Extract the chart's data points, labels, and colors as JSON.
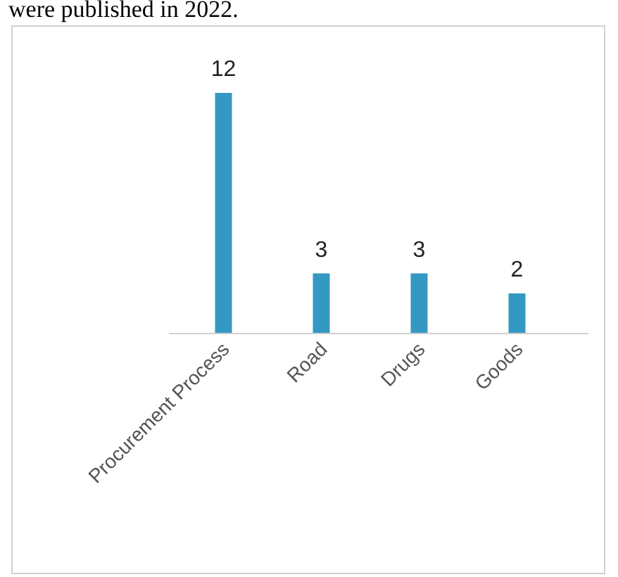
{
  "chart_data": {
    "type": "bar",
    "annotations": [
      "were published in 2022."
    ],
    "categories": [
      "Procurement Process",
      "Road",
      "Drugs",
      "Goods"
    ],
    "values": [
      12,
      3,
      3,
      2
    ],
    "color": "#3399c3",
    "data_labels": true
  }
}
